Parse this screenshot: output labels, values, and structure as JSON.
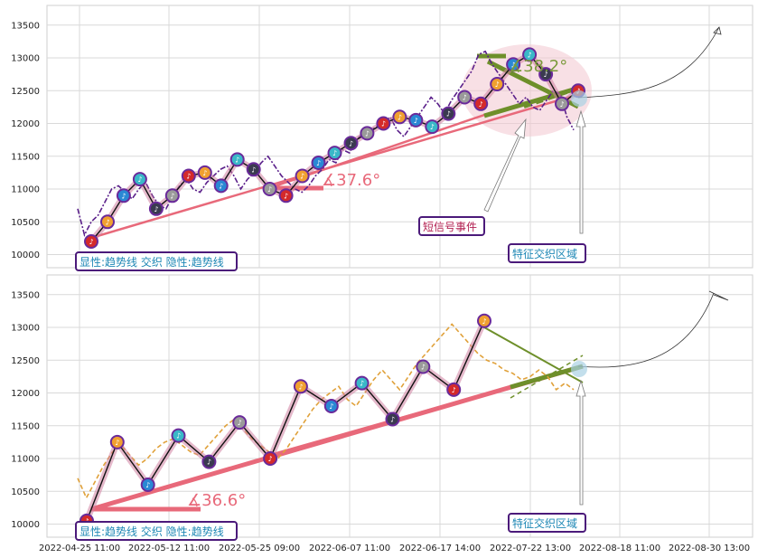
{
  "chart_data": [
    {
      "type": "line",
      "panel": "top",
      "ylim": [
        9800,
        13800
      ],
      "yticks": [
        10000,
        10500,
        11000,
        11500,
        12000,
        12500,
        13000,
        13500
      ],
      "grid": true,
      "legend_text": "显性:趋势线 交织 隐性:趋势线",
      "angle_labels": [
        {
          "text": "∡37.6°",
          "color": "#e8697a"
        },
        {
          "text": "∡38.2°",
          "color": "#7a9a3a"
        }
      ],
      "callouts": [
        "短信号事件",
        "特征交织区域"
      ],
      "series": [
        {
          "values": [
            10700,
            10300,
            10500,
            10600,
            10800,
            11000,
            11050,
            10950,
            10850,
            11000,
            11100,
            10900,
            10750,
            10700,
            10900,
            11050,
            11150,
            11000,
            10950,
            11100,
            11200,
            11300,
            11350,
            11200,
            11000,
            11150,
            11250,
            11400,
            11500,
            11350,
            11200,
            11100,
            11000,
            10950,
            11050,
            11200,
            11300,
            11450,
            11400,
            11600,
            11550,
            11750,
            11850,
            11900,
            11950,
            12000,
            12100,
            11900,
            11800,
            11950,
            12100,
            12250,
            12400,
            12300,
            12150,
            12350,
            12500,
            12650,
            12800,
            13050,
            13100,
            12900,
            12750,
            12600,
            12450,
            12300,
            12400,
            12250,
            12200,
            12350,
            12500,
            12450,
            12100,
            11900
          ]
        },
        {
          "values": [
            10200,
            10500,
            10900,
            11150,
            10700,
            10900,
            11200,
            11250,
            11050,
            11450,
            11300,
            11000,
            10900,
            11200,
            11400,
            11550,
            11700,
            11850,
            12000,
            12100,
            12050,
            11950,
            12150,
            12400,
            12300,
            12600,
            12900,
            13050,
            12750,
            12300,
            12500
          ]
        }
      ]
    },
    {
      "type": "line",
      "panel": "bottom",
      "ylim": [
        9800,
        13800
      ],
      "yticks": [
        10000,
        10500,
        11000,
        11500,
        12000,
        12500,
        13000,
        13500
      ],
      "grid": true,
      "legend_text": "显性:趋势线 交织 隐性:趋势线",
      "angle_labels": [
        {
          "text": "∡36.6°",
          "color": "#e8697a"
        }
      ],
      "callouts": [
        "特征交织区域"
      ],
      "x_ticks": [
        "2022-04-25 11:00",
        "2022-05-12 11:00",
        "2022-05-25 09:00",
        "2022-06-07 11:00",
        "2022-06-17 14:00",
        "2022-07-22 13:00",
        "2022-08-18 11:00",
        "2022-08-30 13:00"
      ],
      "series": [
        {
          "values": [
            10700,
            10400,
            10650,
            10900,
            11100,
            11200,
            11050,
            10900,
            11000,
            11150,
            11250,
            11300,
            11200,
            11100,
            11050,
            11200,
            11350,
            11500,
            11600,
            11450,
            11300,
            11200,
            11100,
            11000,
            11150,
            11350,
            11550,
            11750,
            11900,
            12000,
            12100,
            11900,
            11800,
            12000,
            12200,
            12350,
            12200,
            12050,
            12250,
            12450,
            12600,
            12750,
            12900,
            13050,
            12900,
            12750,
            12600,
            12500,
            12450,
            12350,
            12300,
            12200,
            12250,
            12350,
            12250,
            12050,
            12150,
            12050
          ]
        },
        {
          "values": [
            10050,
            11250,
            10600,
            11350,
            10950,
            11550,
            11000,
            12100,
            11800,
            12150,
            11600,
            12400,
            12050,
            13100
          ]
        }
      ]
    }
  ]
}
